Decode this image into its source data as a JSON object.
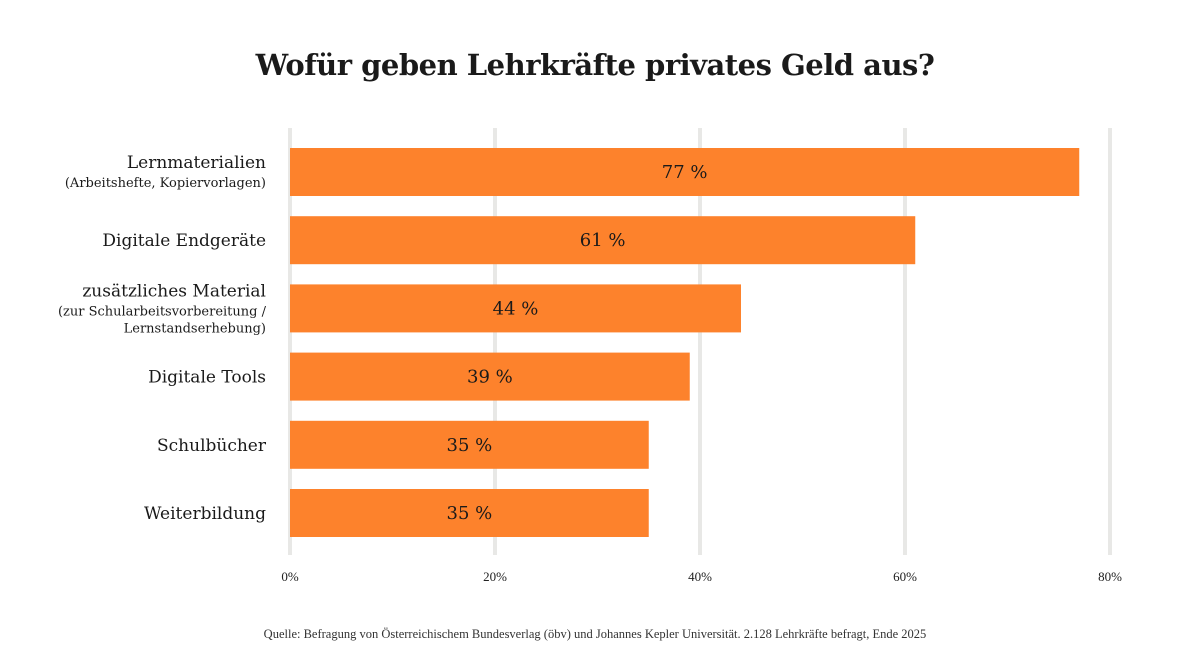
{
  "chart_data": {
    "type": "bar",
    "orientation": "horizontal",
    "title": "Wofür geben Lehrkräfte privates Geld aus?",
    "categories": [
      {
        "label": "Lernmaterialien",
        "sublabel": [
          "(Arbeitshefte, Kopiervorlagen)"
        ]
      },
      {
        "label": "Digitale Endgeräte",
        "sublabel": []
      },
      {
        "label": "zusätzliches Material",
        "sublabel": [
          "(zur Schularbeitsvorbereitung /",
          "Lernstandserhebung)"
        ]
      },
      {
        "label": "Digitale Tools",
        "sublabel": []
      },
      {
        "label": "Schulbücher",
        "sublabel": []
      },
      {
        "label": "Weiterbildung",
        "sublabel": []
      }
    ],
    "values": [
      77,
      61,
      44,
      39,
      35,
      35
    ],
    "data_labels": [
      "77 %",
      "61 %",
      "44 %",
      "39 %",
      "35 %",
      "35 %"
    ],
    "xlim": [
      0,
      80
    ],
    "xticks": [
      0,
      20,
      40,
      60,
      80
    ],
    "xtick_labels": [
      "0%",
      "20%",
      "40%",
      "60%",
      "80%"
    ],
    "grid": true,
    "bar_color": "#fd822c",
    "grid_color": "#e8e8e6",
    "source": "Quelle: Befragung von Österreichischem Bundesverlag (öbv) und Johannes Kepler Universität. 2.128 Lehrkräfte befragt, Ende 2025"
  }
}
